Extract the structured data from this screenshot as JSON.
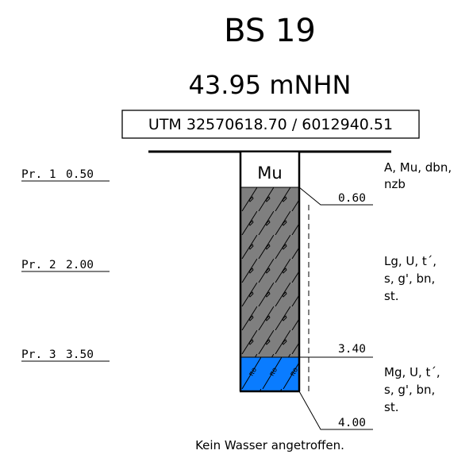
{
  "header": {
    "title": "BS 19",
    "elevation": "43.95 mNHN",
    "utm": "UTM 32570618.70 / 6012940.51"
  },
  "top_layer_code": "Mu",
  "samples": [
    {
      "name": "Pr. 1",
      "depth": "0.50"
    },
    {
      "name": "Pr. 2",
      "depth": "2.00"
    },
    {
      "name": "Pr. 3",
      "depth": "3.50"
    }
  ],
  "boundaries": [
    "0.60",
    "3.40",
    "4.00"
  ],
  "descriptions": [
    {
      "lines": [
        "A, Mu, dbn,",
        "nzb"
      ]
    },
    {
      "lines": [
        "Lg, U, t´,",
        "s, g', bn,",
        "st."
      ]
    },
    {
      "lines": [
        "Mg, U, t´,",
        "s, g', bn,",
        "st."
      ]
    }
  ],
  "water_note": "Kein Wasser angetroffen.",
  "colors": {
    "top_layer": "#ffffff",
    "middle_layer": "#7f7f7f",
    "bottom_layer": "#0a7cff",
    "lines": "#000000"
  }
}
